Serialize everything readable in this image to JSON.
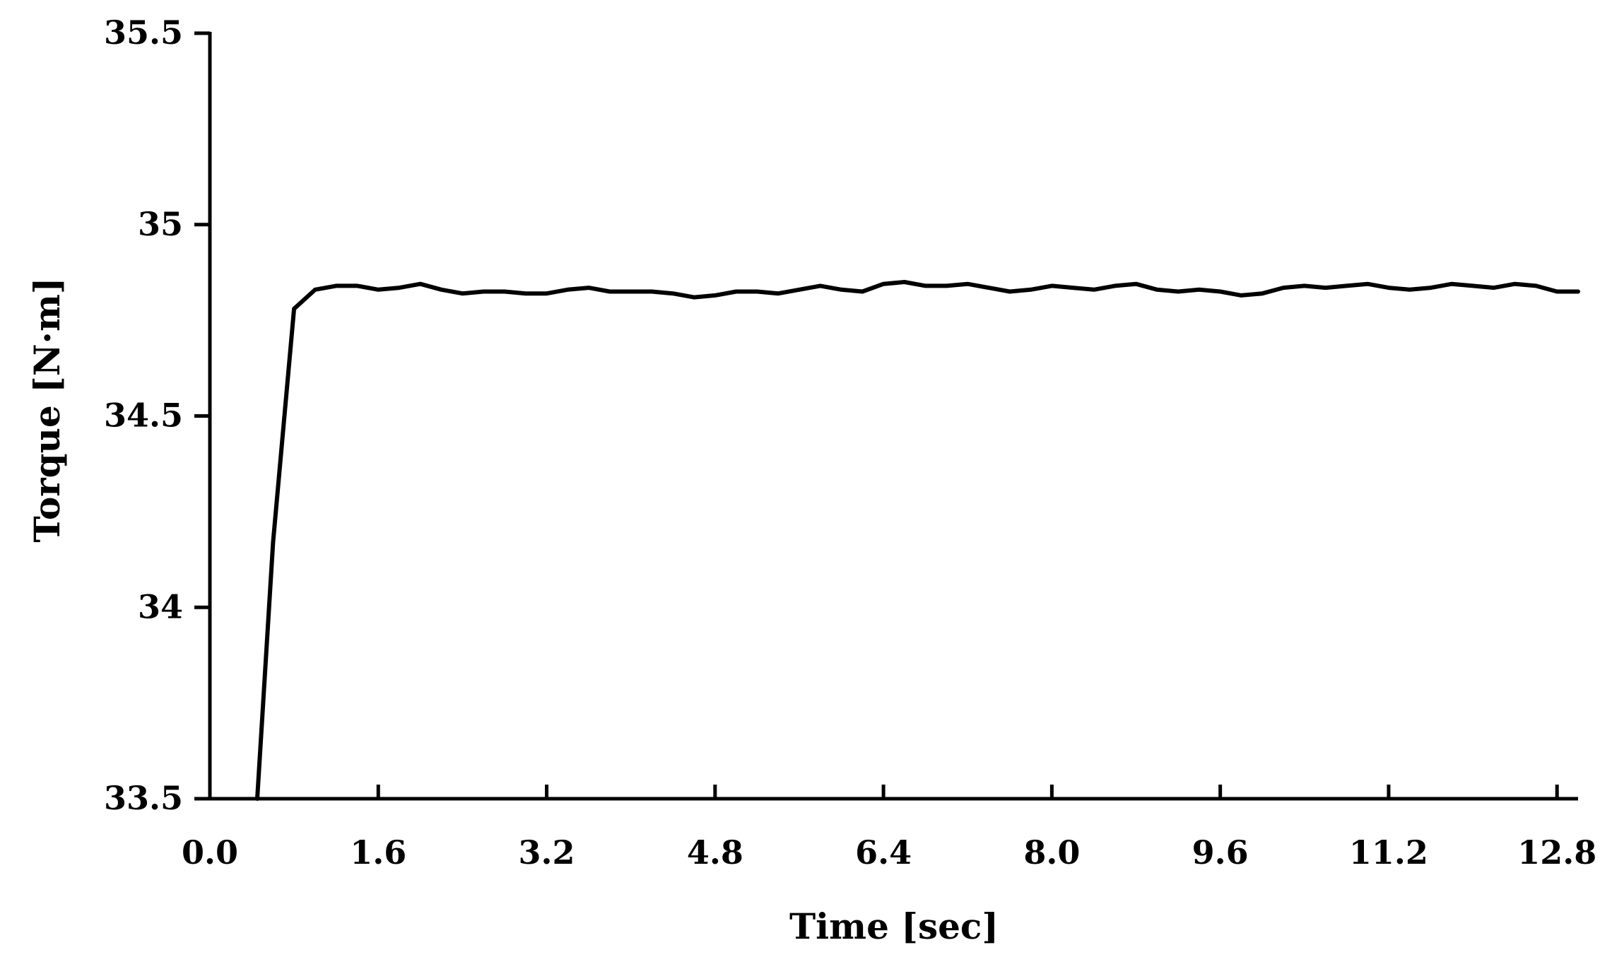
{
  "chart_data": {
    "type": "line",
    "title": "",
    "xlabel": "Time [sec]",
    "ylabel": "Torque [N·m]",
    "xlim": [
      0,
      13.0
    ],
    "ylim": [
      33.5,
      35.5
    ],
    "x_ticks": [
      0.0,
      1.6,
      3.2,
      4.8,
      6.4,
      8.0,
      9.6,
      11.2,
      12.8
    ],
    "x_tick_labels": [
      "0.0",
      "1.6",
      "3.2",
      "4.8",
      "6.4",
      "8.0",
      "9.6",
      "11.2",
      "12.8"
    ],
    "y_ticks": [
      33.5,
      34,
      34.5,
      35,
      35.5
    ],
    "y_tick_labels": [
      "33.5",
      "34",
      "34.5",
      "35",
      "35.5"
    ],
    "grid": false,
    "legend": "none",
    "line_color": "#000000",
    "series": [
      {
        "x": [
          0.45,
          0.6,
          0.8,
          1.0,
          1.2,
          1.4,
          1.6,
          1.8,
          2.0,
          2.2,
          2.4,
          2.6,
          2.8,
          3.0,
          3.2,
          3.4,
          3.6,
          3.8,
          4.0,
          4.2,
          4.4,
          4.6,
          4.8,
          5.0,
          5.2,
          5.4,
          5.6,
          5.8,
          6.0,
          6.2,
          6.4,
          6.6,
          6.8,
          7.0,
          7.2,
          7.4,
          7.6,
          7.8,
          8.0,
          8.2,
          8.4,
          8.6,
          8.8,
          9.0,
          9.2,
          9.4,
          9.6,
          9.8,
          10.0,
          10.2,
          10.4,
          10.6,
          10.8,
          11.0,
          11.2,
          11.4,
          11.6,
          11.8,
          12.0,
          12.2,
          12.4,
          12.6,
          12.8,
          13.0
        ],
        "y": [
          33.5,
          34.17,
          34.78,
          34.83,
          34.84,
          34.84,
          34.83,
          34.835,
          34.845,
          34.83,
          34.82,
          34.825,
          34.825,
          34.82,
          34.82,
          34.83,
          34.835,
          34.825,
          34.825,
          34.825,
          34.82,
          34.81,
          34.815,
          34.825,
          34.825,
          34.82,
          34.83,
          34.84,
          34.83,
          34.825,
          34.845,
          34.85,
          34.84,
          34.84,
          34.845,
          34.835,
          34.825,
          34.83,
          34.84,
          34.835,
          34.83,
          34.84,
          34.845,
          34.83,
          34.825,
          34.83,
          34.825,
          34.815,
          34.82,
          34.835,
          34.84,
          34.835,
          34.84,
          34.845,
          34.835,
          34.83,
          34.835,
          34.845,
          34.84,
          34.835,
          34.845,
          34.84,
          34.825,
          34.825
        ]
      }
    ]
  }
}
